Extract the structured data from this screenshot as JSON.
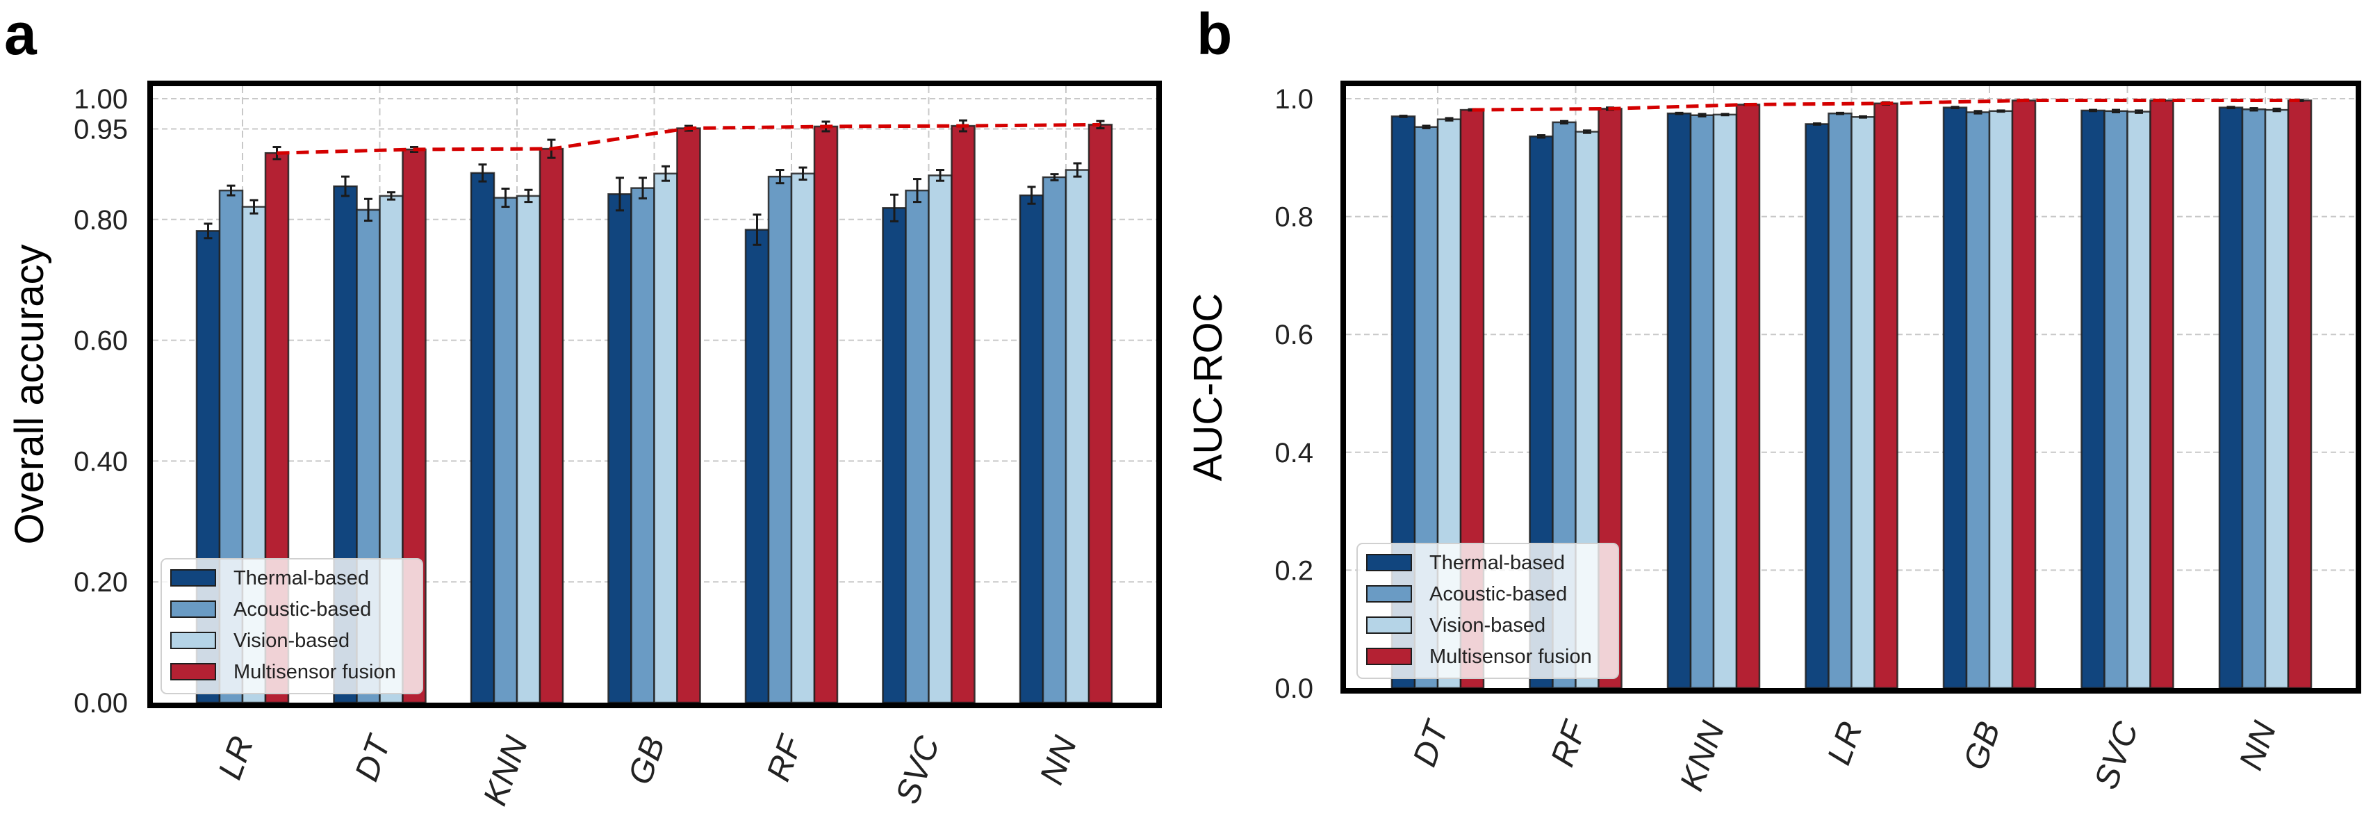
{
  "chart_data": [
    {
      "panel": "a",
      "type": "bar",
      "title": "",
      "xlabel": "",
      "ylabel": "Overall accuracy",
      "ylim": [
        0,
        1.02
      ],
      "yticks": [
        0.0,
        0.2,
        0.4,
        0.6,
        0.8,
        0.95,
        1.0
      ],
      "ytick_labels": [
        "0.00",
        "0.20",
        "0.40",
        "0.60",
        "0.80",
        "0.95",
        "1.00"
      ],
      "grid": true,
      "legend_position": "bottom-left",
      "categories": [
        "LR",
        "DT",
        "KNN",
        "GB",
        "RF",
        "SVC",
        "NN"
      ],
      "series": [
        {
          "name": "Thermal-based",
          "color": "#11457e",
          "values": [
            0.781,
            0.855,
            0.877,
            0.842,
            0.783,
            0.819,
            0.84
          ],
          "errors": [
            0.012,
            0.016,
            0.014,
            0.027,
            0.025,
            0.022,
            0.014
          ]
        },
        {
          "name": "Acoustic-based",
          "color": "#6a9bc4",
          "values": [
            0.848,
            0.816,
            0.836,
            0.852,
            0.871,
            0.848,
            0.87
          ],
          "errors": [
            0.008,
            0.018,
            0.015,
            0.017,
            0.011,
            0.019,
            0.005
          ]
        },
        {
          "name": "Vision-based",
          "color": "#b5d4e7",
          "values": [
            0.821,
            0.839,
            0.839,
            0.876,
            0.876,
            0.873,
            0.882
          ],
          "errors": [
            0.011,
            0.006,
            0.01,
            0.012,
            0.01,
            0.009,
            0.011
          ]
        },
        {
          "name": "Multisensor fusion",
          "color": "#b42133",
          "values": [
            0.91,
            0.916,
            0.917,
            0.951,
            0.954,
            0.955,
            0.957
          ],
          "errors": [
            0.01,
            0.004,
            0.015,
            0.004,
            0.008,
            0.009,
            0.006
          ]
        }
      ],
      "trend_line": {
        "series": "Multisensor fusion",
        "style": "dashed",
        "color": "#d40000"
      }
    },
    {
      "panel": "b",
      "type": "bar",
      "title": "",
      "xlabel": "",
      "ylabel": "AUC-ROC",
      "ylim": [
        0,
        1.025
      ],
      "yticks": [
        0.0,
        0.2,
        0.4,
        0.6,
        0.8,
        1.0
      ],
      "ytick_labels": [
        "0.0",
        "0.2",
        "0.4",
        "0.6",
        "0.8",
        "1.0"
      ],
      "grid": true,
      "legend_position": "bottom-left",
      "categories": [
        "DT",
        "RF",
        "KNN",
        "LR",
        "GB",
        "SVC",
        "NN"
      ],
      "series": [
        {
          "name": "Thermal-based",
          "color": "#11457e",
          "values": [
            0.97,
            0.936,
            0.975,
            0.957,
            0.985,
            0.98,
            0.985
          ],
          "errors": [
            0.001,
            0.002,
            0.001,
            0.001,
            0.001,
            0.001,
            0.001
          ]
        },
        {
          "name": "Acoustic-based",
          "color": "#6a9bc4",
          "values": [
            0.952,
            0.96,
            0.972,
            0.975,
            0.977,
            0.979,
            0.982
          ],
          "errors": [
            0.002,
            0.002,
            0.002,
            0.001,
            0.002,
            0.002,
            0.002
          ]
        },
        {
          "name": "Vision-based",
          "color": "#b5d4e7",
          "values": [
            0.965,
            0.944,
            0.973,
            0.969,
            0.979,
            0.978,
            0.981
          ],
          "errors": [
            0.002,
            0.002,
            0.001,
            0.001,
            0.001,
            0.002,
            0.002
          ]
        },
        {
          "name": "Multisensor fusion",
          "color": "#b42133",
          "values": [
            0.981,
            0.983,
            0.99,
            0.992,
            0.997,
            0.997,
            0.997
          ],
          "errors": [
            0.001,
            0.002,
            0.001,
            0.002,
            0.001,
            0.001,
            0.001
          ]
        }
      ],
      "trend_line": {
        "series": "Multisensor fusion",
        "style": "dashed",
        "color": "#d40000"
      }
    }
  ]
}
